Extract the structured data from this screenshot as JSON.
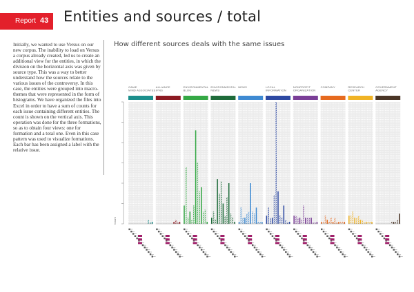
{
  "header": {
    "section_label": "Report",
    "page_number": "43",
    "title": "Entities and sources / total",
    "accent_color": "#e3202b"
  },
  "body_text": "Initially, we wanted to use Versus on our new corpus. The inability to load on Versus a corpus already created, led us to create an additional view for the entities, in which the division on the horizontal axis was given by source type. This was a way to better understand how the sources relate to the various issues of the controversy. In this case, the entities were grouped into macro-themes that were represented in the form of histograms. We have organized the files into Excel in order to have a sum of counts for each issue containing different entities. The count is shown on the vertical axis. This operation was done for the three formations, so as to obtain four views: one for formation and a total one. Even in this case pattern was used to visualize formations. Each bar has been assigned a label with the relative issue.",
  "chart_data": {
    "type": "bar",
    "title": "How different sources deals with the same issues",
    "ylabel": "Count",
    "grid": true,
    "groups": [
      {
        "name": "GAME MIND ASSOCIATES",
        "color": "#1c8f8c",
        "values": [
          0,
          0,
          0,
          0,
          0,
          0,
          0,
          0,
          0,
          0,
          2,
          1,
          1
        ]
      },
      {
        "name": "ALLIANCE IPNS",
        "color": "#8c1a22",
        "values": [
          0,
          0,
          0,
          0,
          0,
          0,
          0,
          0,
          0,
          1,
          2,
          1,
          1
        ]
      },
      {
        "name": "ENVIRONMENTAL BLOG",
        "color": "#35a845",
        "values": [
          9,
          28,
          3,
          6,
          2,
          9,
          46,
          30,
          16,
          18,
          6,
          7,
          1
        ]
      },
      {
        "name": "ENVIRONMENTAL NEWS",
        "color": "#1e6b3a",
        "values": [
          3,
          6,
          2,
          22,
          15,
          21,
          10,
          4,
          13,
          20,
          5,
          3,
          1
        ]
      },
      {
        "name": "NEWS",
        "color": "#3e8ad2",
        "values": [
          1,
          8,
          3,
          3,
          5,
          6,
          20,
          6,
          5,
          8,
          1,
          1,
          1
        ]
      },
      {
        "name": "LOCAL INFORMATION",
        "color": "#2d49a2",
        "values": [
          4,
          8,
          3,
          3,
          14,
          60,
          16,
          4,
          3,
          9,
          2,
          1,
          1
        ]
      },
      {
        "name": "NONPROFIT ORGANIZATION",
        "color": "#7a3e97",
        "values": [
          4,
          4,
          3,
          3,
          2,
          9,
          3,
          3,
          3,
          3,
          1,
          1,
          1
        ]
      },
      {
        "name": "COMPANY",
        "color": "#e66a1f",
        "values": [
          1,
          1,
          4,
          2,
          1,
          3,
          1,
          3,
          1,
          1,
          1,
          1,
          1
        ]
      },
      {
        "name": "RESEARCH CENTER",
        "color": "#f0b325",
        "values": [
          4,
          4,
          6,
          3,
          3,
          4,
          2,
          2,
          1,
          1,
          1,
          1,
          1
        ]
      },
      {
        "name": "GOVERNMENT AGENCY",
        "color": "#4a3526",
        "values": [
          0,
          0,
          0,
          0,
          0,
          0,
          0,
          0,
          1,
          1,
          1,
          2,
          5
        ]
      }
    ]
  }
}
